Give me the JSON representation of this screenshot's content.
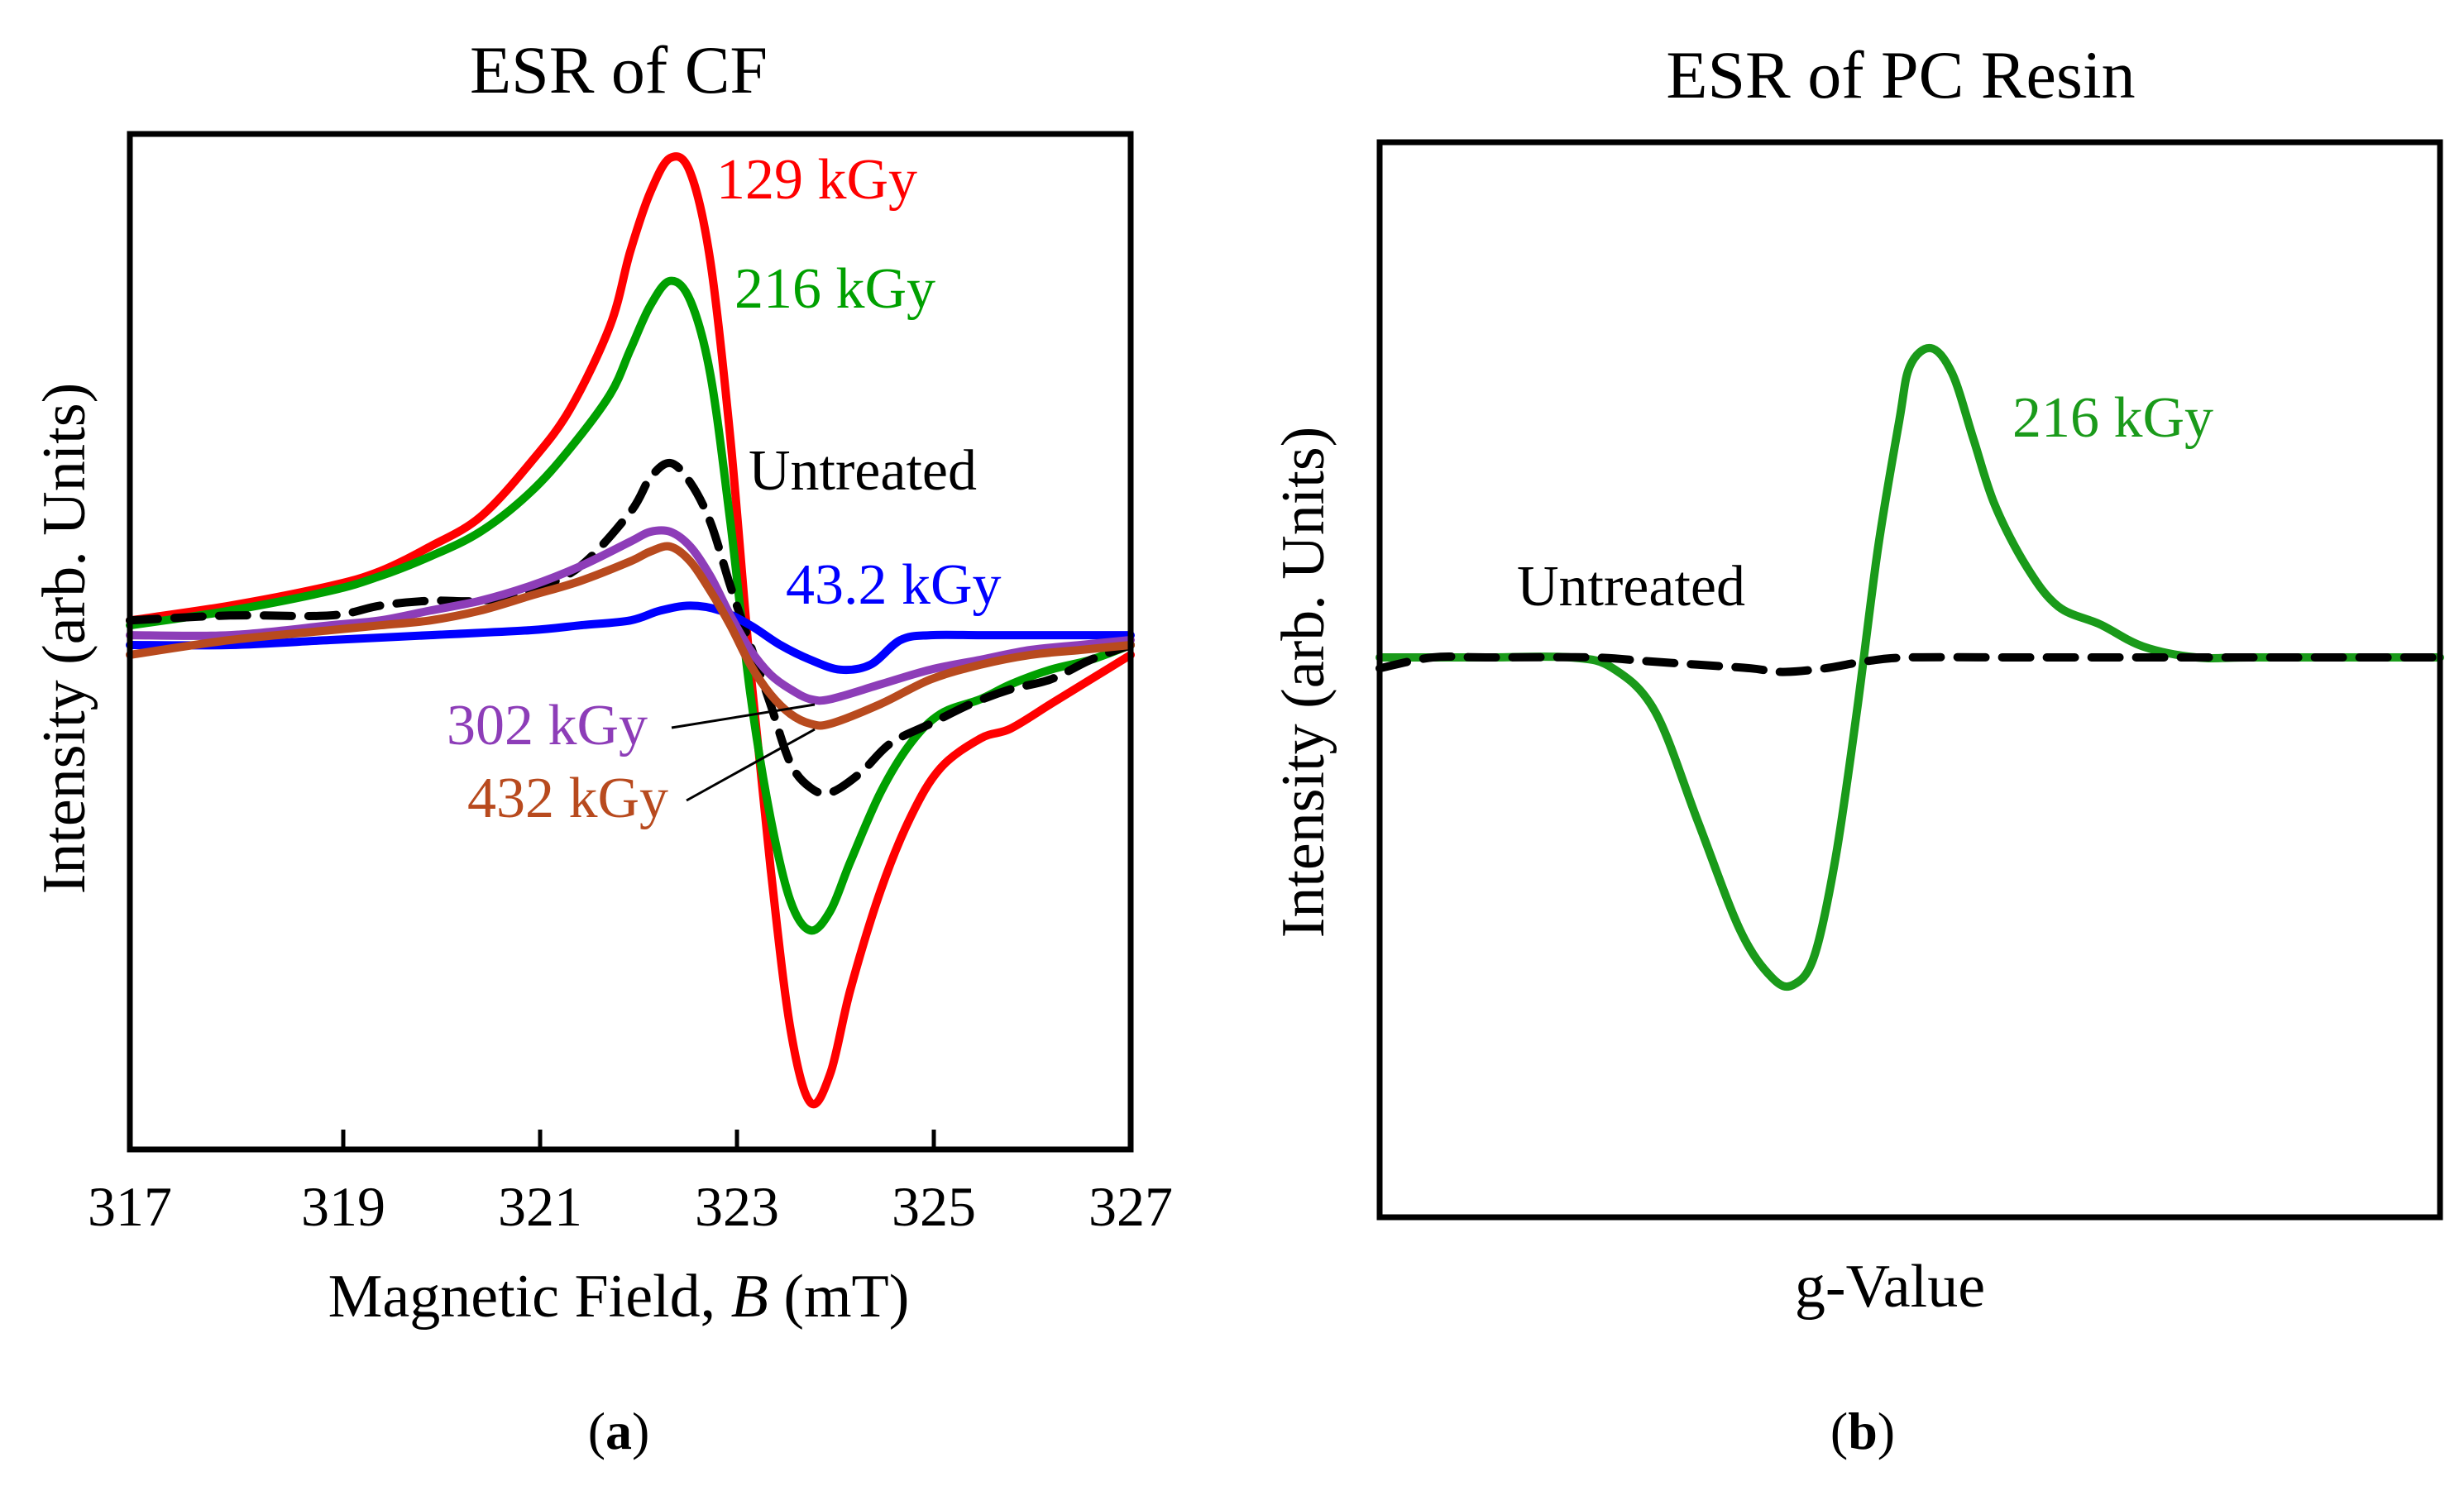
{
  "chart_data": [
    {
      "type": "line",
      "panel": "a",
      "title": "ESR of CF",
      "xlabel_prefix": "Magnetic  Field, ",
      "xlabel_var": "B",
      "xlabel_suffix": " (mT)",
      "ylabel": "Intensity (arb. Units)",
      "xlim": [
        317,
        327
      ],
      "ylim": [
        -1.0,
        1.0
      ],
      "xticks": [
        "317",
        "319",
        "321",
        "323",
        "325",
        "327"
      ],
      "panel_label": "a",
      "series": [
        {
          "name": "129 kGy",
          "color": "#ff0000",
          "dash": false,
          "x": [
            317,
            318,
            319,
            319.5,
            320,
            320.5,
            321,
            321.4,
            321.8,
            322,
            322.2,
            322.4,
            322.6,
            322.8,
            323,
            323.2,
            323.4,
            323.6,
            323.8,
            324,
            324.2,
            324.5,
            324.8,
            325.1,
            325.5,
            325.8,
            326.2,
            326.6,
            327
          ],
          "y": [
            0.05,
            0.08,
            0.12,
            0.15,
            0.2,
            0.26,
            0.37,
            0.48,
            0.65,
            0.8,
            0.92,
            0.99,
            0.96,
            0.78,
            0.42,
            -0.05,
            -0.45,
            -0.78,
            -0.93,
            -0.87,
            -0.7,
            -0.5,
            -0.35,
            -0.25,
            -0.19,
            -0.17,
            -0.12,
            -0.07,
            -0.02
          ]
        },
        {
          "name": "216 kGy",
          "color": "#00a000",
          "dash": false,
          "x": [
            317,
            318,
            319,
            319.5,
            320,
            320.5,
            321,
            321.4,
            321.8,
            322,
            322.2,
            322.4,
            322.6,
            322.8,
            323,
            323.2,
            323.4,
            323.6,
            323.8,
            324,
            324.2,
            324.5,
            324.8,
            325.1,
            325.5,
            325.8,
            326.2,
            326.6,
            327
          ],
          "y": [
            0.04,
            0.07,
            0.11,
            0.14,
            0.18,
            0.23,
            0.31,
            0.4,
            0.51,
            0.6,
            0.69,
            0.74,
            0.7,
            0.55,
            0.25,
            -0.1,
            -0.35,
            -0.52,
            -0.58,
            -0.54,
            -0.44,
            -0.3,
            -0.2,
            -0.14,
            -0.11,
            -0.08,
            -0.05,
            -0.03,
            0.0
          ]
        },
        {
          "name": "Untreated",
          "color": "#000000",
          "dash": true,
          "x": [
            317,
            318,
            319,
            319.5,
            320,
            320.5,
            321,
            321.5,
            322,
            322.2,
            322.4,
            322.6,
            322.8,
            323,
            323.2,
            323.4,
            323.6,
            323.8,
            324,
            324.3,
            324.6,
            325,
            325.4,
            325.8,
            326.2,
            326.6,
            327
          ],
          "y": [
            0.05,
            0.06,
            0.06,
            0.08,
            0.09,
            0.09,
            0.11,
            0.16,
            0.27,
            0.34,
            0.37,
            0.33,
            0.25,
            0.12,
            0.0,
            -0.12,
            -0.24,
            -0.29,
            -0.3,
            -0.26,
            -0.2,
            -0.16,
            -0.12,
            -0.09,
            -0.07,
            -0.03,
            0.0
          ]
        },
        {
          "name": "43.2 kGy",
          "color": "#0000ff",
          "dash": false,
          "x": [
            317,
            318,
            319,
            320,
            321,
            321.5,
            322,
            322.3,
            322.6,
            322.9,
            323.2,
            323.5,
            323.8,
            324.1,
            324.4,
            324.7,
            325,
            325.5,
            326,
            326.5,
            327
          ],
          "y": [
            0.0,
            0.0,
            0.01,
            0.02,
            0.03,
            0.04,
            0.05,
            0.07,
            0.08,
            0.07,
            0.04,
            0.0,
            -0.03,
            -0.05,
            -0.04,
            0.01,
            0.02,
            0.02,
            0.02,
            0.02,
            0.02
          ]
        },
        {
          "name": "302 kGy",
          "color": "#8d3db8",
          "dash": false,
          "x": [
            317,
            318,
            319,
            319.5,
            320,
            320.5,
            321,
            321.5,
            322,
            322.2,
            322.4,
            322.6,
            322.8,
            323,
            323.2,
            323.4,
            323.6,
            323.8,
            324,
            324.5,
            325,
            325.5,
            326,
            326.5,
            327
          ],
          "y": [
            0.02,
            0.02,
            0.04,
            0.05,
            0.07,
            0.09,
            0.12,
            0.16,
            0.21,
            0.23,
            0.23,
            0.2,
            0.14,
            0.06,
            -0.01,
            -0.06,
            -0.09,
            -0.11,
            -0.11,
            -0.08,
            -0.05,
            -0.03,
            -0.01,
            0.0,
            0.01
          ]
        },
        {
          "name": "432 kGy",
          "color": "#b84a1e",
          "dash": false,
          "x": [
            317,
            318,
            319,
            319.5,
            320,
            320.5,
            321,
            321.5,
            322,
            322.2,
            322.4,
            322.6,
            322.8,
            323,
            323.2,
            323.4,
            323.6,
            323.8,
            324,
            324.5,
            325,
            325.5,
            326,
            326.5,
            327
          ],
          "y": [
            -0.02,
            0.01,
            0.03,
            0.04,
            0.05,
            0.07,
            0.1,
            0.13,
            0.17,
            0.19,
            0.2,
            0.17,
            0.11,
            0.04,
            -0.04,
            -0.1,
            -0.14,
            -0.16,
            -0.16,
            -0.12,
            -0.07,
            -0.04,
            -0.02,
            -0.01,
            0.0
          ]
        }
      ]
    },
    {
      "type": "line",
      "panel": "b",
      "title": "ESR of PC Resin",
      "xlabel": "g-Value",
      "ylabel": "Intensity (arb. Units)",
      "xlim": [
        0,
        1
      ],
      "ylim": [
        -1.0,
        1.0
      ],
      "panel_label": "b",
      "series": [
        {
          "name": "216 kGy",
          "color": "#1a9a1a",
          "dash": false,
          "x": [
            0,
            0.1,
            0.18,
            0.22,
            0.26,
            0.3,
            0.34,
            0.37,
            0.39,
            0.41,
            0.43,
            0.45,
            0.47,
            0.49,
            0.5,
            0.52,
            0.54,
            0.56,
            0.58,
            0.61,
            0.64,
            0.68,
            0.72,
            0.77,
            0.82,
            0.9,
            1.0
          ],
          "y": [
            0.0,
            0.0,
            0.0,
            -0.03,
            -0.15,
            -0.45,
            -0.75,
            -0.88,
            -0.9,
            -0.82,
            -0.55,
            -0.15,
            0.3,
            0.65,
            0.8,
            0.85,
            0.78,
            0.6,
            0.42,
            0.25,
            0.14,
            0.09,
            0.03,
            0.0,
            0.0,
            0.0,
            0.0
          ]
        },
        {
          "name": "Untreated",
          "color": "#000000",
          "dash": true,
          "x": [
            0,
            0.05,
            0.1,
            0.2,
            0.25,
            0.3,
            0.35,
            0.38,
            0.42,
            0.46,
            0.5,
            0.6,
            0.7,
            0.8,
            0.9,
            1.0
          ],
          "y": [
            -0.03,
            0.0,
            0.0,
            0.0,
            -0.01,
            -0.02,
            -0.03,
            -0.04,
            -0.03,
            -0.01,
            0.0,
            0.0,
            0.0,
            0.0,
            0.0,
            0.0
          ]
        }
      ]
    }
  ]
}
